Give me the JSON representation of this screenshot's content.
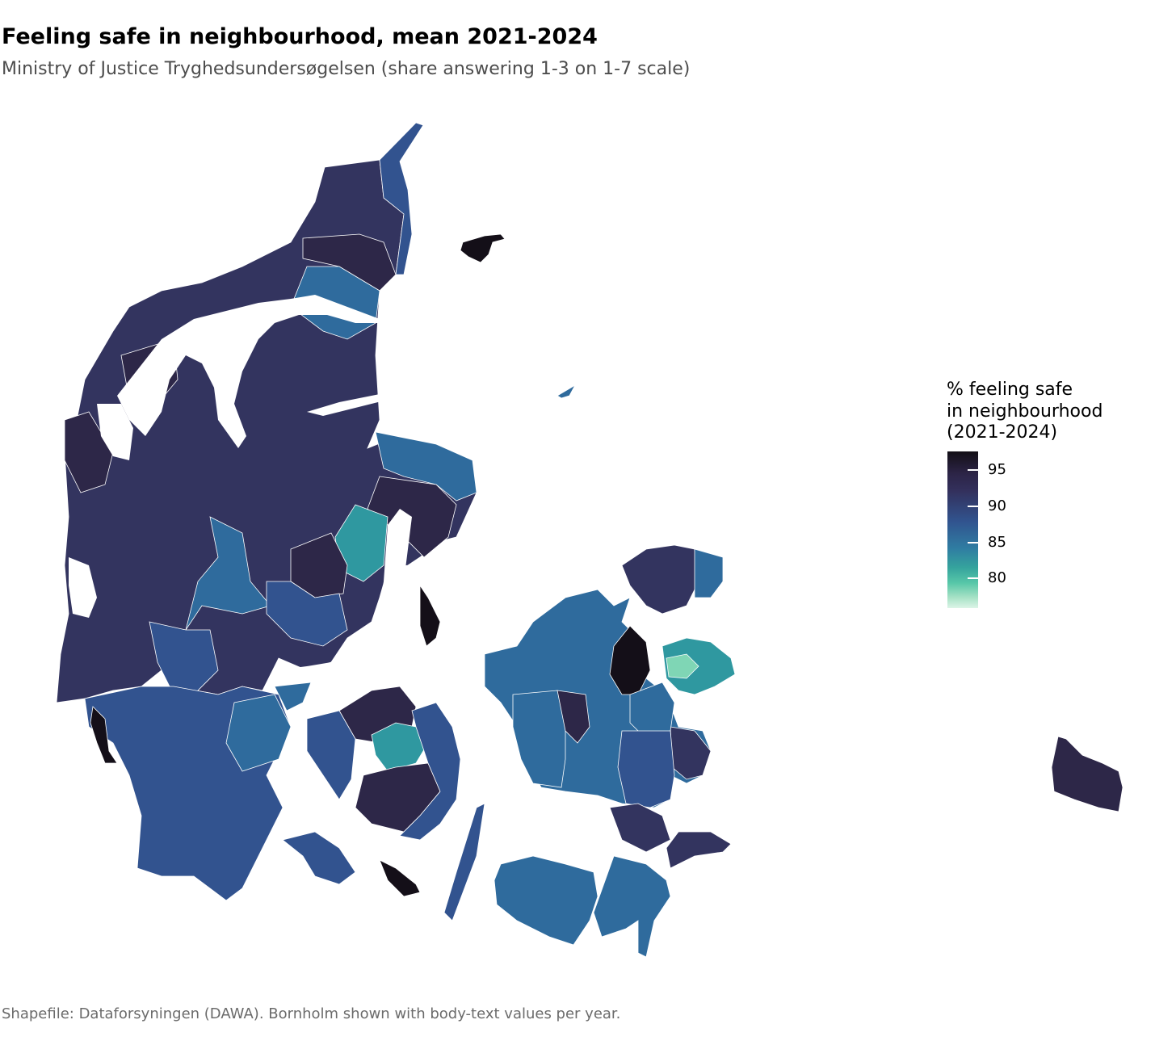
{
  "title": "Feeling safe in neighbourhood, mean 2021-2024",
  "subtitle": "Ministry of Justice Tryghedsundersøgelsen (share answering 1-3 on 1-7 scale)",
  "caption": "Shapefile: Dataforsyningen (DAWA). Bornholm shown with body-text values per year.",
  "legend": {
    "title_lines": [
      "% feeling safe",
      "in neighbourhood",
      "(2021-2024)"
    ],
    "ticks": [
      "95",
      "90",
      "85",
      "80"
    ],
    "range": [
      76,
      97
    ],
    "colors": [
      "#130f16",
      "#2c2446",
      "#33305c",
      "#31548f",
      "#2f7da2",
      "#35a39d",
      "#57c7a8",
      "#a5e1c5",
      "#dcf4e7"
    ]
  },
  "map_colors": {
    "very_high": "#140f18",
    "high": "#2d2748",
    "mid_high": "#33345f",
    "mid": "#32538f",
    "mid_low": "#2f6b9d",
    "low": "#2f98a0",
    "very_low": "#7fd6b5"
  }
}
